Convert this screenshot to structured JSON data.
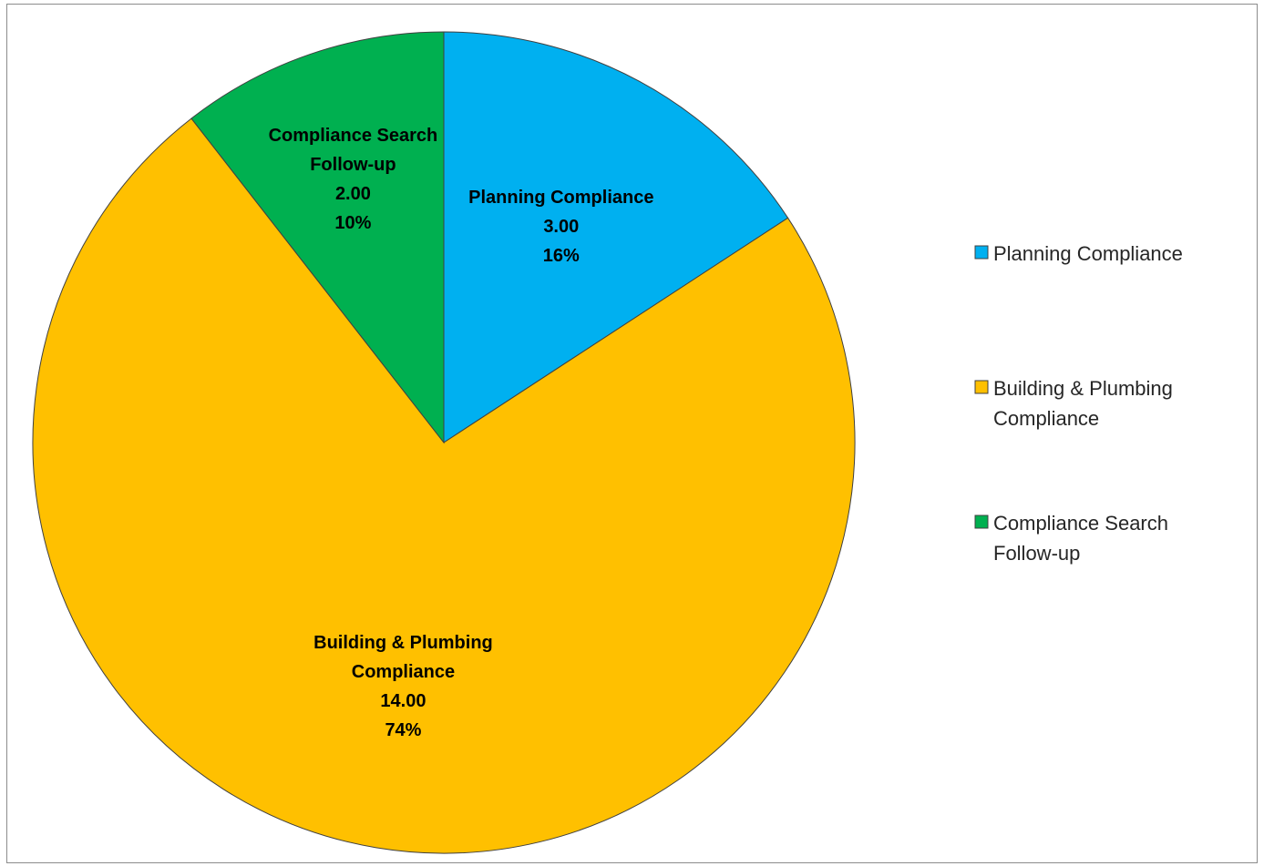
{
  "chart_data": {
    "type": "pie",
    "title": "",
    "categories": [
      "Planning Compliance",
      "Building & Plumbing Compliance",
      "Compliance Search Follow-up"
    ],
    "values": [
      3.0,
      14.0,
      2.0
    ],
    "value_labels": [
      "3.00",
      "14.00",
      "2.00"
    ],
    "percent_labels": [
      "16%",
      "74%",
      "10%"
    ],
    "data_label_lines": [
      [
        "Planning Compliance"
      ],
      [
        "Building & Plumbing",
        "Compliance"
      ],
      [
        "Compliance Search",
        "Follow-up"
      ]
    ],
    "legend_lines": [
      [
        "Planning Compliance"
      ],
      [
        "Building & Plumbing",
        "Compliance"
      ],
      [
        "Compliance Search",
        "Follow-up"
      ]
    ],
    "colors": [
      "#00b0f0",
      "#ffc000",
      "#00b050"
    ],
    "legend_position": "right",
    "start_angle": "12 o'clock, clockwise"
  }
}
